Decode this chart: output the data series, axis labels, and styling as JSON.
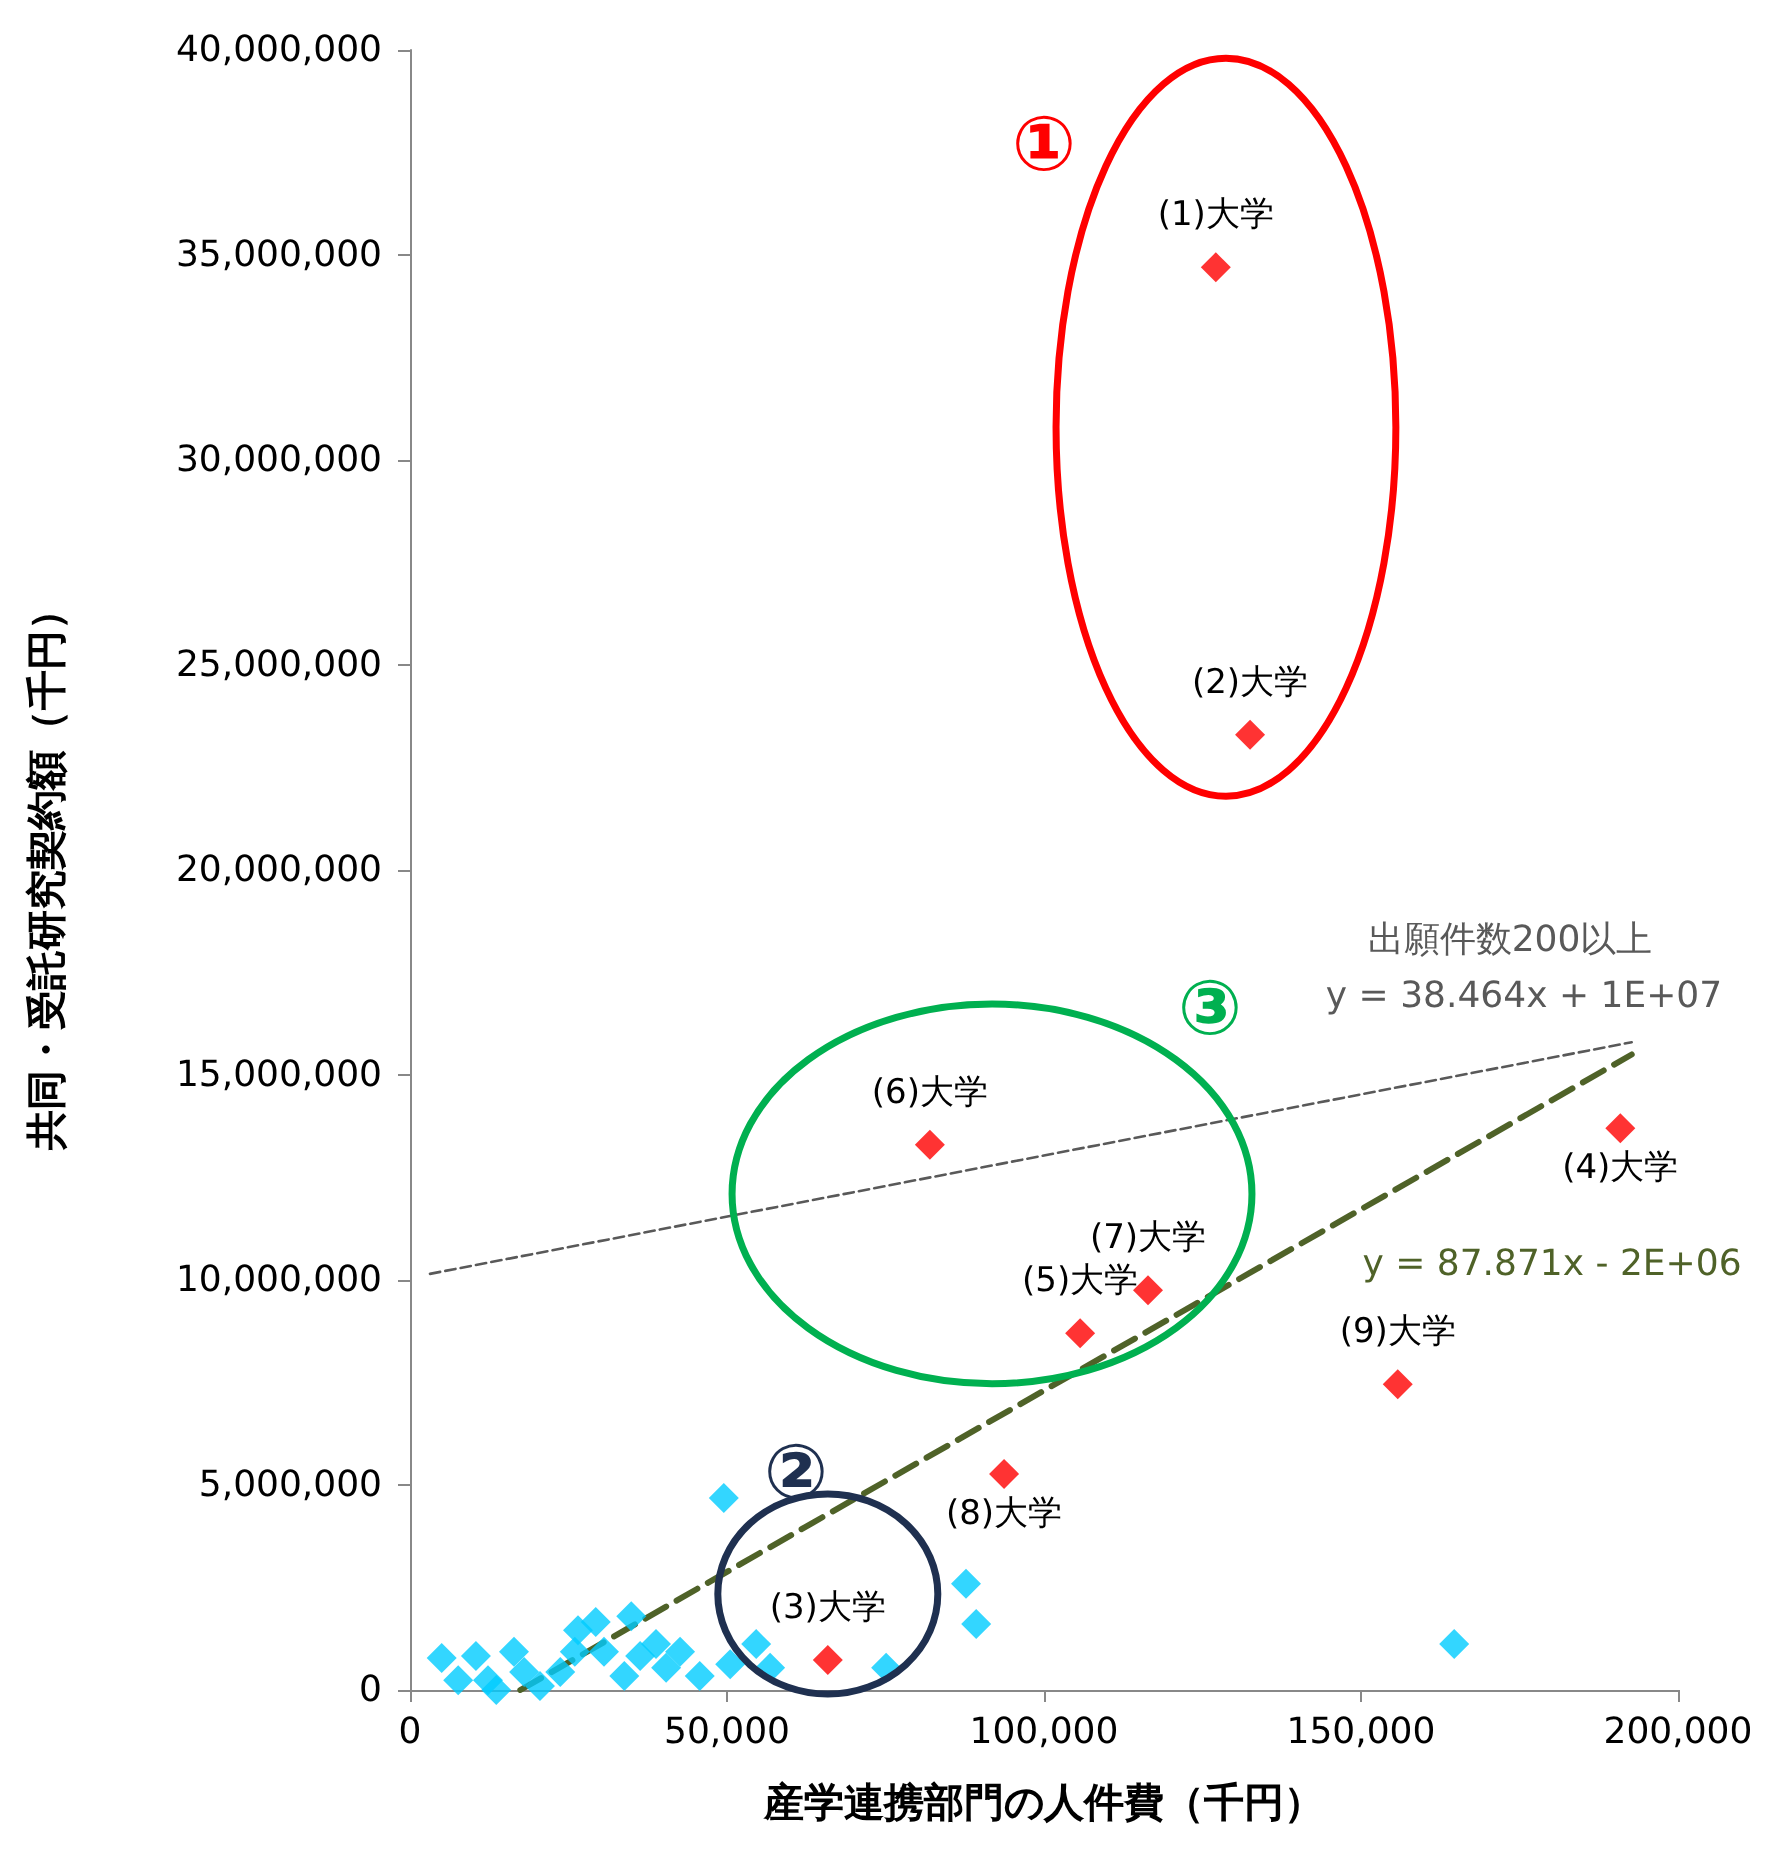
{
  "chart_data": {
    "type": "scatter",
    "xlabel": "産学連携部門の人件費（千円）",
    "ylabel": "共同・受託研究契約額（千円）",
    "xlim": [
      0,
      200000
    ],
    "xticks": [
      {
        "value": 0,
        "label": "0"
      },
      {
        "value": 50000,
        "label": "50,000"
      },
      {
        "value": 100000,
        "label": "100,000"
      },
      {
        "value": 150000,
        "label": "150,000"
      },
      {
        "value": 200000,
        "label": "200,000"
      }
    ],
    "ylim": [
      0,
      40000000
    ],
    "yticks": [
      {
        "value": 0,
        "label": "0"
      },
      {
        "value": 5000000,
        "label": "5,000,000"
      },
      {
        "value": 10000000,
        "label": "10,000,000"
      },
      {
        "value": 15000000,
        "label": "15,000,000"
      },
      {
        "value": 20000000,
        "label": "20,000,000"
      },
      {
        "value": 25000000,
        "label": "25,000,000"
      },
      {
        "value": 30000000,
        "label": "30,000,000"
      },
      {
        "value": 35000000,
        "label": "35,000,000"
      },
      {
        "value": 40000000,
        "label": "40,000,000"
      }
    ],
    "grid": false,
    "marker": "diamond",
    "series": [
      {
        "color": "#00ccff",
        "x": [
          5000,
          7600,
          10400,
          12300,
          13600,
          16400,
          18000,
          20500,
          23700,
          26000,
          26500,
          29300,
          30600,
          33800,
          34900,
          36300,
          38800,
          40400,
          42600,
          45700,
          49500,
          50500,
          54600,
          56800,
          75100,
          87700,
          89300,
          164700
        ],
        "values": [
          780000,
          240000,
          830000,
          240000,
          0,
          930000,
          440000,
          100000,
          440000,
          930000,
          1460000,
          1660000,
          930000,
          340000,
          1800000,
          830000,
          1120000,
          540000,
          930000,
          340000,
          4680000,
          630000,
          1120000,
          540000,
          540000,
          2590000,
          1610000,
          1120000
        ]
      },
      {
        "color": "#ff0000",
        "x": [
          127100,
          132500,
          65900,
          190900,
          105700,
          82000,
          116400,
          93700,
          155800
        ],
        "values": [
          34700000,
          23300000,
          730000,
          13700000,
          8700000,
          13300000,
          9750000,
          5270000,
          7460000
        ]
      },
      {
        "type": "line",
        "color": "#595959",
        "line_style": "dashed",
        "marker": "none",
        "x": [
          3150,
          192700
        ],
        "values": [
          10150000,
          15800000
        ]
      },
      {
        "type": "line",
        "color": "#4f6228",
        "line_style": "dashed",
        "marker": "none",
        "x": [
          17400,
          192700
        ],
        "values": [
          0,
          15500000
        ]
      }
    ],
    "annotations": [
      "①",
      "②",
      "③",
      {
        "text": "(1)大学",
        "x": 127100,
        "y": 34700000
      },
      {
        "text": "(2)大学",
        "x": 132500,
        "y": 23300000
      },
      {
        "text": "(3)大学",
        "x": 65900,
        "y": 730000
      },
      {
        "text": "(4)大学",
        "x": 190900,
        "y": 13700000
      },
      {
        "text": "(5)大学",
        "x": 105700,
        "y": 8700000
      },
      {
        "text": "(6)大学",
        "x": 82000,
        "y": 13300000
      },
      {
        "text": "(7)大学",
        "x": 116400,
        "y": 9750000
      },
      {
        "text": "(8)大学",
        "x": 93700,
        "y": 5270000
      },
      {
        "text": "(9)大学",
        "x": 155800,
        "y": 7460000
      },
      "出願件数200以上",
      "y = 38.464x + 1E+07",
      "y = 87.871x - 2E+06"
    ]
  }
}
